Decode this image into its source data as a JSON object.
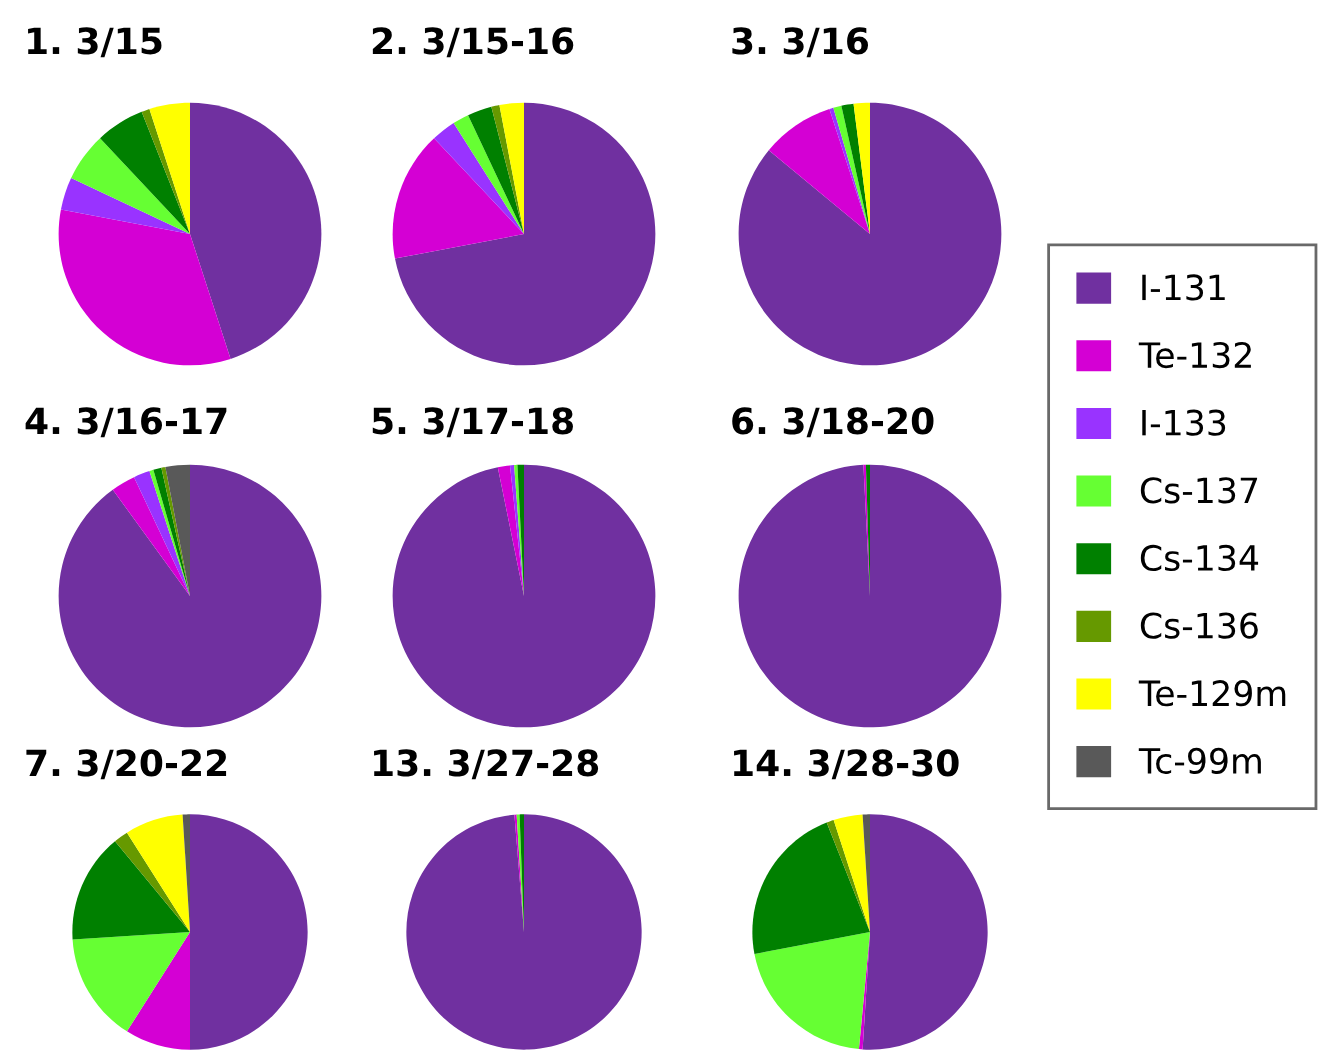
{
  "chart_data": [
    {
      "type": "pie",
      "title": "1. 3/15",
      "legend": "right",
      "categories": [
        "I-131",
        "Te-132",
        "I-133",
        "Cs-137",
        "Cs-134",
        "Cs-136",
        "Te-129m",
        "Tc-99m"
      ],
      "values": [
        45,
        33,
        4,
        6,
        6,
        1,
        5,
        0
      ],
      "colors": [
        "#7030a0",
        "#d400d4",
        "#9933ff",
        "#66ff33",
        "#008000",
        "#669900",
        "#ffff00",
        "#595959"
      ]
    },
    {
      "type": "pie",
      "title": "2. 3/15-16",
      "values": [
        72,
        16,
        3,
        2,
        3,
        1,
        3,
        0
      ],
      "colors": [
        "#7030a0",
        "#d400d4",
        "#9933ff",
        "#66ff33",
        "#008000",
        "#669900",
        "#ffff00",
        "#595959"
      ]
    },
    {
      "type": "pie",
      "title": "3. 3/16",
      "values": [
        86,
        9,
        0.5,
        1,
        1.5,
        0,
        2,
        0
      ],
      "colors": [
        "#7030a0",
        "#d400d4",
        "#9933ff",
        "#66ff33",
        "#008000",
        "#669900",
        "#ffff00",
        "#595959"
      ]
    },
    {
      "type": "pie",
      "title": "4. 3/16-17",
      "values": [
        90,
        3,
        2,
        0.5,
        1,
        0.5,
        0,
        3
      ],
      "colors": [
        "#7030a0",
        "#d400d4",
        "#9933ff",
        "#66ff33",
        "#008000",
        "#669900",
        "#ffff00",
        "#595959"
      ]
    },
    {
      "type": "pie",
      "title": "5. 3/17-18",
      "values": [
        96.8,
        1.5,
        0.5,
        0.4,
        0.8,
        0,
        0,
        0
      ],
      "colors": [
        "#7030a0",
        "#d400d4",
        "#9933ff",
        "#66ff33",
        "#008000",
        "#669900",
        "#ffff00",
        "#595959"
      ]
    },
    {
      "type": "pie",
      "title": "6. 3/18-20",
      "values": [
        99.2,
        0.3,
        0,
        0,
        0.5,
        0,
        0,
        0
      ],
      "colors": [
        "#7030a0",
        "#d400d4",
        "#9933ff",
        "#66ff33",
        "#008000",
        "#669900",
        "#ffff00",
        "#595959"
      ]
    },
    {
      "type": "pie",
      "title": "7. 3/20-22",
      "values": [
        50,
        9,
        0,
        15,
        15,
        2,
        8,
        1
      ],
      "colors": [
        "#7030a0",
        "#d400d4",
        "#9933ff",
        "#66ff33",
        "#008000",
        "#669900",
        "#ffff00",
        "#595959"
      ]
    },
    {
      "type": "pie",
      "title": "13. 3/27-28",
      "values": [
        98.7,
        0.3,
        0,
        0.4,
        0.6,
        0,
        0,
        0
      ],
      "colors": [
        "#7030a0",
        "#d400d4",
        "#9933ff",
        "#66ff33",
        "#008000",
        "#669900",
        "#ffff00",
        "#595959"
      ]
    },
    {
      "type": "pie",
      "title": "14. 3/28-30",
      "values": [
        51,
        0.5,
        0,
        20.5,
        22,
        1,
        4,
        1
      ],
      "colors": [
        "#7030a0",
        "#d400d4",
        "#9933ff",
        "#66ff33",
        "#008000",
        "#669900",
        "#ffff00",
        "#595959"
      ]
    }
  ]
}
